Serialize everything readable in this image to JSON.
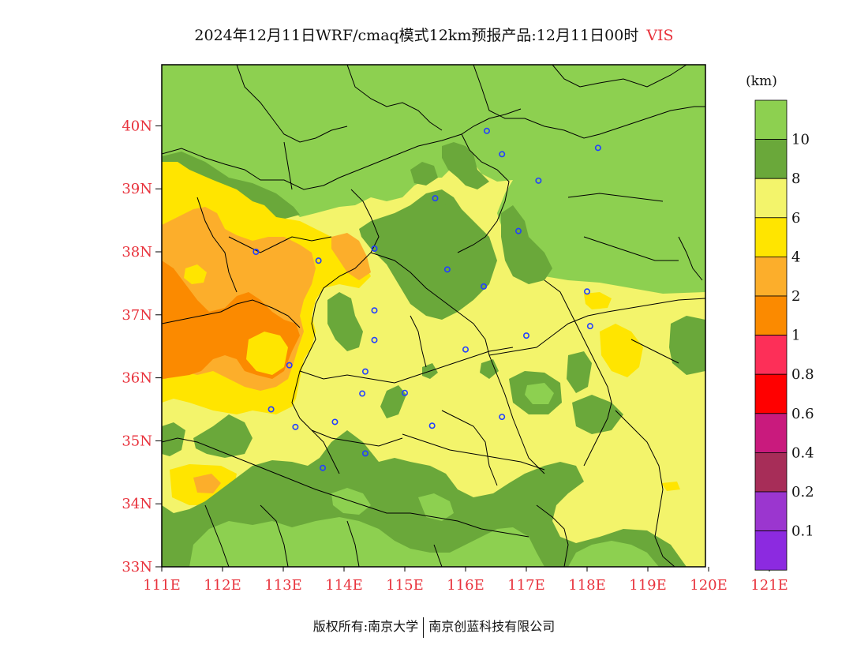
{
  "title": {
    "main": "2024年12月11日WRF/cmaq模式12km预报产品:12月11日00时",
    "variable": "VIS"
  },
  "copyright": {
    "left": "版权所有:南京大学",
    "right": "南京创蓝科技有限公司"
  },
  "map": {
    "lat_labels": [
      "40N",
      "39N",
      "38N",
      "37N",
      "36N",
      "35N",
      "34N",
      "33N"
    ],
    "lon_labels": [
      "111E",
      "112E",
      "113E",
      "114E",
      "115E",
      "116E",
      "117E",
      "118E",
      "119E",
      "120E",
      "121E"
    ],
    "label_color": "#e8323c"
  },
  "legend": {
    "unit": "(km)",
    "levels": [
      {
        "label": "10",
        "color": "#8dd050"
      },
      {
        "label": "8",
        "color": "#6aa83a"
      },
      {
        "label": "6",
        "color": "#f3f46b"
      },
      {
        "label": "4",
        "color": "#ffe500"
      },
      {
        "label": "2",
        "color": "#fcae2b"
      },
      {
        "label": "1",
        "color": "#fb8a00"
      },
      {
        "label": "0.8",
        "color": "#fd2f58"
      },
      {
        "label": "0.6",
        "color": "#ff0000"
      },
      {
        "label": "0.4",
        "color": "#c91a7d"
      },
      {
        "label": "0.2",
        "color": "#a72d58"
      },
      {
        "label": "0.1",
        "color": "#9b36cf"
      },
      {
        "label": "",
        "color": "#8c2ae0"
      }
    ]
  },
  "colors": {
    "vis_10": "#8dd050",
    "vis_8": "#6aa83a",
    "vis_6": "#f3f46b",
    "vis_4": "#ffe500",
    "vis_2": "#fcae2b",
    "vis_1": "#fb8a00",
    "station_marker": "#2340ff",
    "boundary": "#000000"
  },
  "stations": [
    {
      "lon": 116.35,
      "lat": 39.92
    },
    {
      "lon": 116.6,
      "lat": 39.55
    },
    {
      "lon": 117.2,
      "lat": 39.13
    },
    {
      "lon": 118.18,
      "lat": 39.65
    },
    {
      "lon": 115.5,
      "lat": 38.85
    },
    {
      "lon": 116.87,
      "lat": 38.33
    },
    {
      "lon": 112.55,
      "lat": 38.0
    },
    {
      "lon": 113.58,
      "lat": 37.86
    },
    {
      "lon": 114.5,
      "lat": 38.05
    },
    {
      "lon": 115.7,
      "lat": 37.72
    },
    {
      "lon": 116.3,
      "lat": 37.45
    },
    {
      "lon": 118.0,
      "lat": 37.37
    },
    {
      "lon": 114.5,
      "lat": 37.07
    },
    {
      "lon": 114.5,
      "lat": 36.6
    },
    {
      "lon": 116.0,
      "lat": 36.45
    },
    {
      "lon": 117.0,
      "lat": 36.67
    },
    {
      "lon": 118.05,
      "lat": 36.82
    },
    {
      "lon": 113.1,
      "lat": 36.2
    },
    {
      "lon": 114.35,
      "lat": 36.1
    },
    {
      "lon": 114.3,
      "lat": 35.75
    },
    {
      "lon": 115.0,
      "lat": 35.76
    },
    {
      "lon": 112.8,
      "lat": 35.5
    },
    {
      "lon": 113.2,
      "lat": 35.22
    },
    {
      "lon": 113.85,
      "lat": 35.3
    },
    {
      "lon": 115.45,
      "lat": 35.24
    },
    {
      "lon": 116.6,
      "lat": 35.38
    },
    {
      "lon": 114.35,
      "lat": 34.8
    },
    {
      "lon": 113.65,
      "lat": 34.57
    }
  ]
}
